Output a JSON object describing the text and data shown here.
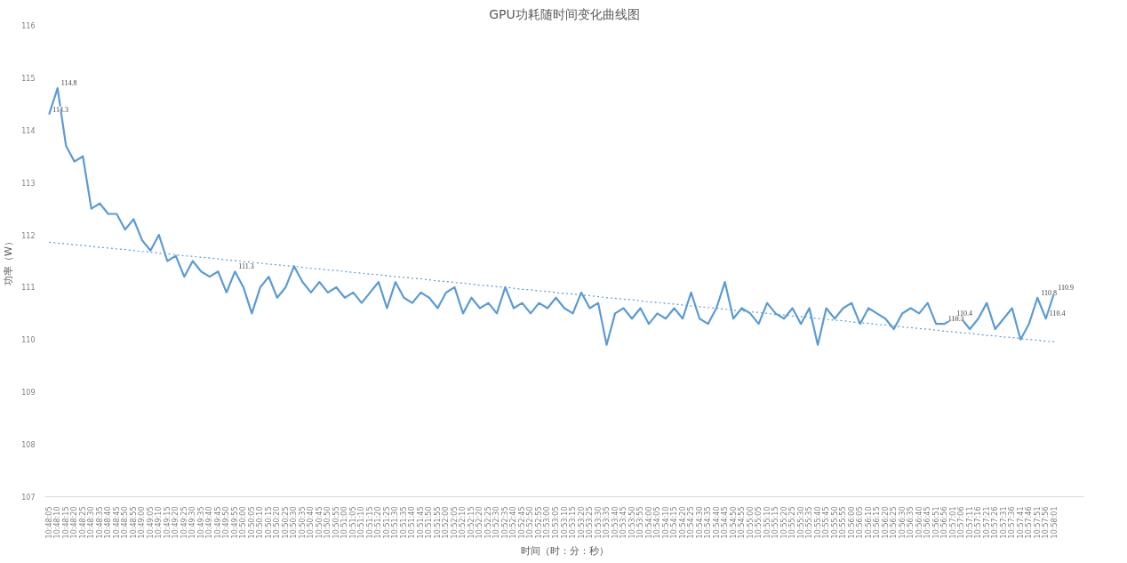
{
  "chart_data": {
    "type": "line",
    "title": "GPU功耗随时间变化曲线图",
    "xlabel": "时间（时：分：秒）",
    "ylabel": "功率（W）",
    "categories": [
      "10:48:05",
      "10:48:10",
      "10:48:15",
      "10:48:20",
      "10:48:25",
      "10:48:30",
      "10:48:35",
      "10:48:40",
      "10:48:45",
      "10:48:50",
      "10:48:55",
      "10:49:00",
      "10:49:05",
      "10:49:10",
      "10:49:15",
      "10:49:20",
      "10:49:25",
      "10:49:30",
      "10:49:35",
      "10:49:40",
      "10:49:45",
      "10:49:50",
      "10:49:55",
      "10:50:00",
      "10:50:05",
      "10:50:10",
      "10:50:15",
      "10:50:20",
      "10:50:25",
      "10:50:30",
      "10:50:35",
      "10:50:40",
      "10:50:45",
      "10:50:50",
      "10:50:55",
      "10:51:00",
      "10:51:05",
      "10:51:10",
      "10:51:15",
      "10:51:20",
      "10:51:25",
      "10:51:30",
      "10:51:35",
      "10:51:40",
      "10:51:45",
      "10:51:50",
      "10:51:55",
      "10:52:00",
      "10:52:05",
      "10:52:10",
      "10:52:15",
      "10:52:20",
      "10:52:25",
      "10:52:30",
      "10:52:35",
      "10:52:40",
      "10:52:45",
      "10:52:50",
      "10:52:55",
      "10:53:00",
      "10:53:05",
      "10:53:10",
      "10:53:15",
      "10:53:20",
      "10:53:25",
      "10:53:30",
      "10:53:35",
      "10:53:40",
      "10:53:45",
      "10:53:50",
      "10:53:55",
      "10:54:00",
      "10:54:05",
      "10:54:10",
      "10:54:15",
      "10:54:20",
      "10:54:25",
      "10:54:30",
      "10:54:35",
      "10:54:40",
      "10:54:45",
      "10:54:50",
      "10:54:55",
      "10:55:00",
      "10:55:05",
      "10:55:10",
      "10:55:15",
      "10:55:20",
      "10:55:25",
      "10:55:30",
      "10:55:35",
      "10:55:40",
      "10:55:45",
      "10:55:50",
      "10:55:55",
      "10:56:00",
      "10:56:05",
      "10:56:10",
      "10:56:15",
      "10:56:20",
      "10:56:25",
      "10:56:30",
      "10:56:35",
      "10:56:40",
      "10:56:45",
      "10:56:51",
      "10:56:56",
      "10:57:01",
      "10:57:06",
      "10:57:11",
      "10:57:16",
      "10:57:21",
      "10:57:26",
      "10:57:31",
      "10:57:36",
      "10:57:41",
      "10:57:46",
      "10:57:51",
      "10:57:56",
      "10:58:01"
    ],
    "ylim": [
      107,
      116
    ],
    "yticks": [
      107,
      108,
      109,
      110,
      111,
      112,
      113,
      114,
      115,
      116
    ],
    "grid": false,
    "marker": "none",
    "series": [
      {
        "line_style": "solid",
        "color": "#5b9bd5",
        "values": [
          114.3,
          114.8,
          113.7,
          113.4,
          113.5,
          112.5,
          112.6,
          112.4,
          112.4,
          112.1,
          112.3,
          111.9,
          111.7,
          112.0,
          111.5,
          111.6,
          111.2,
          111.5,
          111.3,
          111.2,
          111.3,
          110.9,
          111.3,
          111.0,
          110.5,
          111.0,
          111.2,
          110.8,
          111.0,
          111.4,
          111.1,
          110.9,
          111.1,
          110.9,
          111.0,
          110.8,
          110.9,
          110.7,
          110.9,
          111.1,
          110.6,
          111.1,
          110.8,
          110.7,
          110.9,
          110.8,
          110.6,
          110.9,
          111.0,
          110.5,
          110.8,
          110.6,
          110.7,
          110.5,
          111.0,
          110.6,
          110.7,
          110.5,
          110.7,
          110.6,
          110.8,
          110.6,
          110.5,
          110.9,
          110.6,
          110.7,
          109.9,
          110.5,
          110.6,
          110.4,
          110.6,
          110.3,
          110.5,
          110.4,
          110.6,
          110.4,
          110.9,
          110.4,
          110.3,
          110.6,
          111.1,
          110.4,
          110.6,
          110.5,
          110.3,
          110.7,
          110.5,
          110.4,
          110.6,
          110.3,
          110.6,
          109.9,
          110.6,
          110.4,
          110.6,
          110.7,
          110.3,
          110.6,
          110.5,
          110.4,
          110.2,
          110.5,
          110.6,
          110.5,
          110.7,
          110.3,
          110.3,
          110.4,
          110.4,
          110.2,
          110.4,
          110.7,
          110.2,
          110.4,
          110.6,
          110.0,
          110.3,
          110.8,
          110.4,
          110.9
        ],
        "value_labels": [
          "114.3",
          "114.8",
          null,
          null,
          null,
          null,
          null,
          null,
          null,
          null,
          null,
          null,
          null,
          null,
          null,
          null,
          null,
          null,
          null,
          null,
          null,
          null,
          "111.3",
          null,
          null,
          null,
          null,
          null,
          null,
          null,
          null,
          null,
          null,
          null,
          null,
          null,
          null,
          null,
          null,
          null,
          null,
          null,
          null,
          null,
          null,
          null,
          null,
          null,
          null,
          null,
          null,
          null,
          null,
          null,
          null,
          null,
          null,
          null,
          null,
          null,
          null,
          null,
          null,
          null,
          null,
          null,
          null,
          null,
          null,
          null,
          null,
          null,
          null,
          null,
          null,
          null,
          null,
          null,
          null,
          null,
          null,
          null,
          null,
          null,
          null,
          null,
          null,
          null,
          null,
          null,
          null,
          null,
          null,
          null,
          null,
          null,
          null,
          null,
          null,
          null,
          null,
          null,
          null,
          null,
          null,
          null,
          "110.3",
          "110.4",
          null,
          null,
          null,
          null,
          null,
          null,
          null,
          null,
          null,
          "110.8",
          "110.4",
          "110.9"
        ]
      },
      {
        "type": "line",
        "line_style": "dotted",
        "color": "#5b9bd5",
        "values": [
          111.86,
          111.84,
          111.83,
          111.81,
          111.8,
          111.78,
          111.76,
          111.75,
          111.73,
          111.72,
          111.7,
          111.68,
          111.67,
          111.65,
          111.64,
          111.62,
          111.6,
          111.59,
          111.57,
          111.56,
          111.54,
          111.52,
          111.51,
          111.49,
          111.48,
          111.46,
          111.44,
          111.43,
          111.41,
          111.4,
          111.38,
          111.36,
          111.35,
          111.33,
          111.32,
          111.3,
          111.28,
          111.27,
          111.25,
          111.24,
          111.22,
          111.2,
          111.19,
          111.17,
          111.16,
          111.14,
          111.12,
          111.11,
          111.09,
          111.08,
          111.06,
          111.04,
          111.03,
          111.01,
          111.0,
          110.98,
          110.96,
          110.95,
          110.93,
          110.92,
          110.9,
          110.88,
          110.87,
          110.85,
          110.84,
          110.82,
          110.8,
          110.79,
          110.77,
          110.76,
          110.74,
          110.72,
          110.71,
          110.69,
          110.68,
          110.66,
          110.64,
          110.63,
          110.61,
          110.6,
          110.58,
          110.56,
          110.55,
          110.53,
          110.52,
          110.5,
          110.48,
          110.47,
          110.45,
          110.44,
          110.42,
          110.4,
          110.39,
          110.37,
          110.36,
          110.34,
          110.32,
          110.31,
          110.29,
          110.28,
          110.26,
          110.24,
          110.23,
          110.21,
          110.2,
          110.18,
          110.16,
          110.15,
          110.13,
          110.12,
          110.1,
          110.08,
          110.07,
          110.05,
          110.04,
          110.02,
          110.0,
          109.99,
          109.97,
          109.96
        ]
      }
    ]
  }
}
